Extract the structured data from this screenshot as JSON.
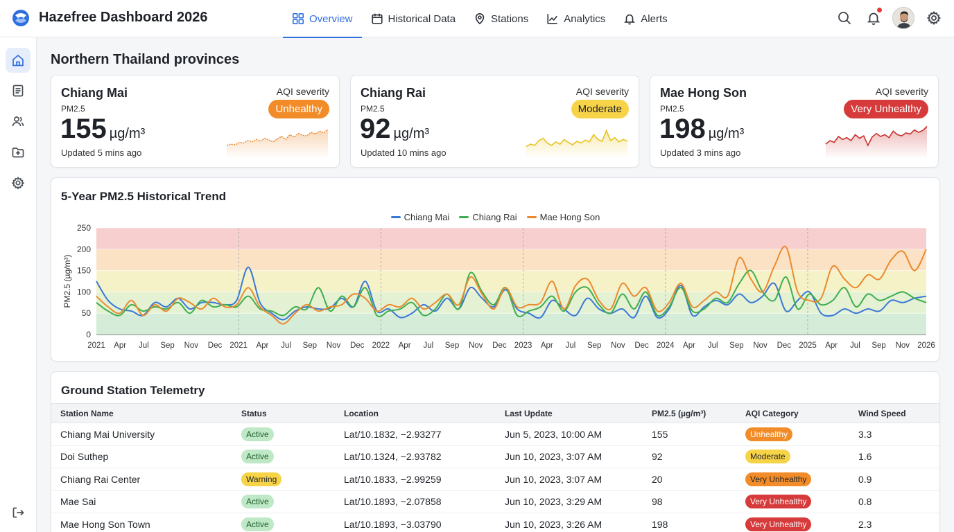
{
  "app": {
    "title": "Hazefree Dashboard 2026"
  },
  "nav": {
    "tabs": [
      {
        "label": "Overview",
        "icon": "grid-icon",
        "active": true
      },
      {
        "label": "Historical Data",
        "icon": "calendar-icon",
        "active": false
      },
      {
        "label": "Stations",
        "icon": "map-pin-icon",
        "active": false
      },
      {
        "label": "Analytics",
        "icon": "line-chart-icon",
        "active": false
      },
      {
        "label": "Alerts",
        "icon": "bell-icon",
        "active": false
      }
    ]
  },
  "header_icons": [
    "search-icon",
    "notification-bell-icon",
    "avatar",
    "settings-gear-icon"
  ],
  "sidebar": {
    "items": [
      "home-icon",
      "reports-icon",
      "users-icon",
      "upload-folder-icon",
      "settings-icon"
    ],
    "bottom": "logout-icon"
  },
  "colors": {
    "accent": "#2f6fdf",
    "chiang_mai": "#3b78d8",
    "chiang_rai": "#3fae4f",
    "mae_hong_son": "#ea8a2f",
    "unhealthy": "#f28c28",
    "moderate": "#f7d348",
    "very_unhealthy": "#d63a3a",
    "active": "#bfe8c6",
    "warning": "#f7d348"
  },
  "provinces": {
    "section_title": "Northern Thailand provinces",
    "severity_label": "AQI severity",
    "metric_label": "PM2.5",
    "unit": "µg/m³",
    "cards": [
      {
        "name": "Chiang Mai",
        "value": "155",
        "severity": "Unhealthy",
        "updated": "Updated 5 mins ago",
        "sparkline": [
          20,
          22,
          21,
          25,
          24,
          28,
          26,
          30,
          27,
          32,
          29,
          26,
          31,
          35,
          30,
          38,
          34,
          40,
          37,
          36,
          42,
          39,
          44,
          41,
          47
        ]
      },
      {
        "name": "Chiang Rai",
        "value": "92",
        "severity": "Moderate",
        "updated": "Updated 10 mins ago",
        "sparkline": [
          18,
          22,
          20,
          28,
          32,
          24,
          20,
          26,
          22,
          30,
          25,
          21,
          27,
          24,
          29,
          26,
          38,
          30,
          27,
          45,
          28,
          33,
          26,
          30,
          27
        ]
      },
      {
        "name": "Mae Hong Son",
        "value": "198",
        "severity": "Very Unhealthy",
        "updated": "Updated 3 mins ago",
        "sparkline": [
          22,
          28,
          25,
          35,
          30,
          33,
          28,
          38,
          32,
          36,
          20,
          34,
          40,
          35,
          38,
          33,
          44,
          38,
          36,
          41,
          39,
          46,
          42,
          45,
          52
        ]
      }
    ]
  },
  "trend": {
    "title": "5-Year PM2.5 Historical Trend"
  },
  "chart_data": {
    "type": "line",
    "title": "5-Year PM2.5 Historical Trend",
    "ylabel": "PM2.5 (µg/m³)",
    "ylim": [
      0,
      250
    ],
    "yticks": [
      0,
      50,
      100,
      150,
      200,
      250
    ],
    "legend": "top-center",
    "x_tick_labels": [
      "2021",
      "Apr",
      "Jul",
      "Sep",
      "Nov",
      "Dec",
      "2021",
      "Apr",
      "Jul",
      "Sep",
      "Nov",
      "Dec",
      "2022",
      "Apr",
      "Jul",
      "Sep",
      "Nov",
      "Dec",
      "2023",
      "Apr",
      "Jul",
      "Sep",
      "Nov",
      "Dec",
      "2024",
      "Apr",
      "Jul",
      "Sep",
      "Nov",
      "Dec",
      "2025",
      "Apr",
      "Jul",
      "Sep",
      "Nov",
      "2026"
    ],
    "aqi_bands": [
      {
        "from": 0,
        "to": 50,
        "color": "#d5ecd8"
      },
      {
        "from": 50,
        "to": 100,
        "color": "#e4f2d3"
      },
      {
        "from": 100,
        "to": 150,
        "color": "#f6f2c8"
      },
      {
        "from": 150,
        "to": 200,
        "color": "#fbe2c4"
      },
      {
        "from": 200,
        "to": 250,
        "color": "#f7cfcf"
      }
    ],
    "series": [
      {
        "name": "Chiang Mai",
        "color": "#3b78d8",
        "values": [
          125,
          80,
          60,
          55,
          45,
          75,
          65,
          85,
          60,
          75,
          75,
          70,
          80,
          158,
          75,
          50,
          35,
          55,
          65,
          60,
          62,
          85,
          65,
          125,
          55,
          60,
          40,
          50,
          70,
          55,
          85,
          60,
          110,
          85,
          65,
          105,
          60,
          50,
          40,
          80,
          60,
          45,
          85,
          60,
          50,
          60,
          40,
          90,
          40,
          60,
          115,
          45,
          65,
          80,
          70,
          95,
          75,
          90,
          120,
          55,
          80,
          100,
          50,
          45,
          60,
          50,
          60,
          55,
          80,
          75,
          85,
          90
        ]
      },
      {
        "name": "Chiang Rai",
        "color": "#3fae4f",
        "values": [
          75,
          55,
          45,
          70,
          55,
          65,
          60,
          75,
          50,
          80,
          65,
          70,
          65,
          90,
          60,
          55,
          45,
          65,
          60,
          110,
          55,
          90,
          65,
          110,
          45,
          55,
          60,
          75,
          45,
          60,
          95,
          60,
          145,
          100,
          70,
          110,
          45,
          55,
          65,
          90,
          55,
          100,
          110,
          70,
          50,
          95,
          60,
          100,
          45,
          65,
          110,
          55,
          60,
          85,
          75,
          120,
          150,
          100,
          80,
          135,
          60,
          95,
          70,
          80,
          110,
          65,
          95,
          80,
          90,
          100,
          85,
          75
        ]
      },
      {
        "name": "Mae Hong Son",
        "color": "#ea8a2f",
        "values": [
          90,
          65,
          50,
          80,
          45,
          70,
          55,
          85,
          75,
          60,
          85,
          65,
          70,
          110,
          65,
          45,
          25,
          50,
          70,
          55,
          65,
          70,
          95,
          85,
          55,
          70,
          65,
          85,
          60,
          75,
          95,
          70,
          135,
          95,
          60,
          110,
          65,
          70,
          75,
          125,
          60,
          115,
          130,
          80,
          60,
          120,
          90,
          110,
          55,
          75,
          120,
          65,
          80,
          100,
          90,
          180,
          130,
          100,
          160,
          205,
          100,
          80,
          85,
          160,
          130,
          110,
          140,
          130,
          175,
          195,
          150,
          200
        ]
      }
    ]
  },
  "telemetry": {
    "title": "Ground Station Telemetry",
    "columns": [
      "Station Name",
      "Status",
      "Location",
      "Last Update",
      "PM2.5 (µg/m³)",
      "AQI Category",
      "Wind Speed"
    ],
    "rows": [
      {
        "station": "Chiang Mai University",
        "status": "Active",
        "location": "Lat/10.1832, −2.93277",
        "updated": "Jun 5, 2023, 10:00 AM",
        "pm25": "155",
        "aqi": "Unhealthy",
        "wind": "3.3"
      },
      {
        "station": "Doi Suthep",
        "status": "Active",
        "location": "Lat/10.1324, −2.93782",
        "updated": "Jun 10, 2023, 3:07 AM",
        "pm25": "92",
        "aqi": "Moderate",
        "wind": "1.6"
      },
      {
        "station": "Chiang Rai Center",
        "status": "Warning",
        "location": "Lat/10.1833, −2.99259",
        "updated": "Jun 10, 2023, 3:07 AM",
        "pm25": "20",
        "aqi": "Very Unhealthy",
        "wind": "0.9"
      },
      {
        "station": "Mae Sai",
        "status": "Active",
        "location": "Lat/10.1893, −2.07858",
        "updated": "Jun 10, 2023, 3:29 AM",
        "pm25": "98",
        "aqi": "Very Unhealthy",
        "wind": "0.8"
      },
      {
        "station": "Mae Hong Son Town",
        "status": "Active",
        "location": "Lat/10.1893, −3.03790",
        "updated": "Jun 10, 2023, 3:26 AM",
        "pm25": "198",
        "aqi": "Very Unhealthy",
        "wind": "2.3"
      }
    ]
  }
}
